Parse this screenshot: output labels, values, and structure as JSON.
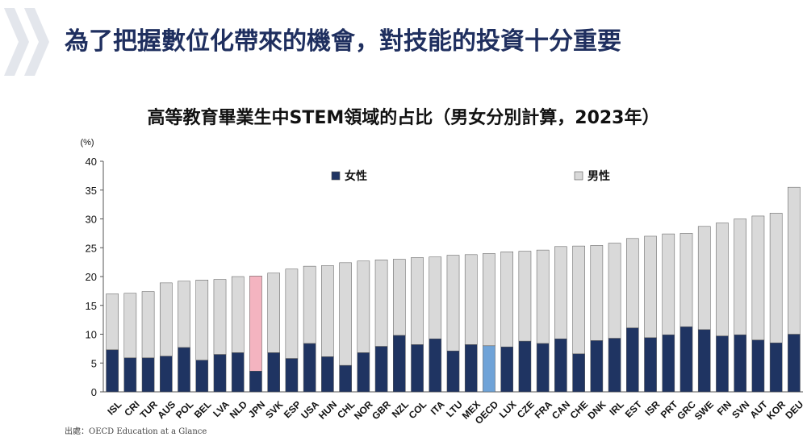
{
  "slide": {
    "title": "為了把握數位化帶來的機會，對技能的投資十分重要",
    "source_label": "出處：",
    "source_text": "OECD Education at a Glance"
  },
  "colors": {
    "female": "#1f3462",
    "male": "#d9d9d9",
    "jpn_male": "#f4b4c0",
    "oecd_female": "#6fa3d8",
    "title": "#1f2f5f",
    "chevron": "#e3e6ec"
  },
  "chart_data": {
    "type": "bar",
    "stacked": true,
    "title": "高等教育畢業生中STEM領域的占比（男女分別計算，2023年）",
    "ylabel": "(%)",
    "ylim": [
      0,
      40
    ],
    "yticks": [
      0,
      5,
      10,
      15,
      20,
      25,
      30,
      35,
      40
    ],
    "grid": false,
    "legend_position": "top",
    "categories": [
      "ISL",
      "CRI",
      "TUR",
      "AUS",
      "POL",
      "BEL",
      "LVA",
      "NLD",
      "JPN",
      "SVK",
      "ESP",
      "USA",
      "HUN",
      "CHL",
      "NOR",
      "GBR",
      "NZL",
      "COL",
      "ITA",
      "LTU",
      "MEX",
      "OECD",
      "LUX",
      "CZE",
      "FRA",
      "CAN",
      "CHE",
      "DNK",
      "IRL",
      "EST",
      "ISR",
      "PRT",
      "GRC",
      "SWE",
      "FIN",
      "SVN",
      "AUT",
      "KOR",
      "DEU"
    ],
    "highlight": [
      "JPN",
      "OECD"
    ],
    "series": [
      {
        "name": "女性",
        "values": [
          7.3,
          5.9,
          5.9,
          6.2,
          7.7,
          5.5,
          6.5,
          6.8,
          3.6,
          6.8,
          5.8,
          8.4,
          6.1,
          4.6,
          6.8,
          7.9,
          9.8,
          8.2,
          9.2,
          7.1,
          8.2,
          8.0,
          7.8,
          8.8,
          8.4,
          9.2,
          6.6,
          8.9,
          9.3,
          11.1,
          9.4,
          9.9,
          11.3,
          10.8,
          9.7,
          9.9,
          9.0,
          8.5,
          10.0
        ]
      },
      {
        "name": "男性",
        "values": [
          9.7,
          11.2,
          11.5,
          12.7,
          11.5,
          13.9,
          13.0,
          13.2,
          16.5,
          13.8,
          15.5,
          13.4,
          15.8,
          17.8,
          15.9,
          15.0,
          13.2,
          15.1,
          14.2,
          16.6,
          15.6,
          16.0,
          16.5,
          15.6,
          16.2,
          16.0,
          18.7,
          16.5,
          16.5,
          15.5,
          17.6,
          17.5,
          16.2,
          17.9,
          19.6,
          20.1,
          21.5,
          22.5,
          25.5
        ]
      }
    ]
  }
}
